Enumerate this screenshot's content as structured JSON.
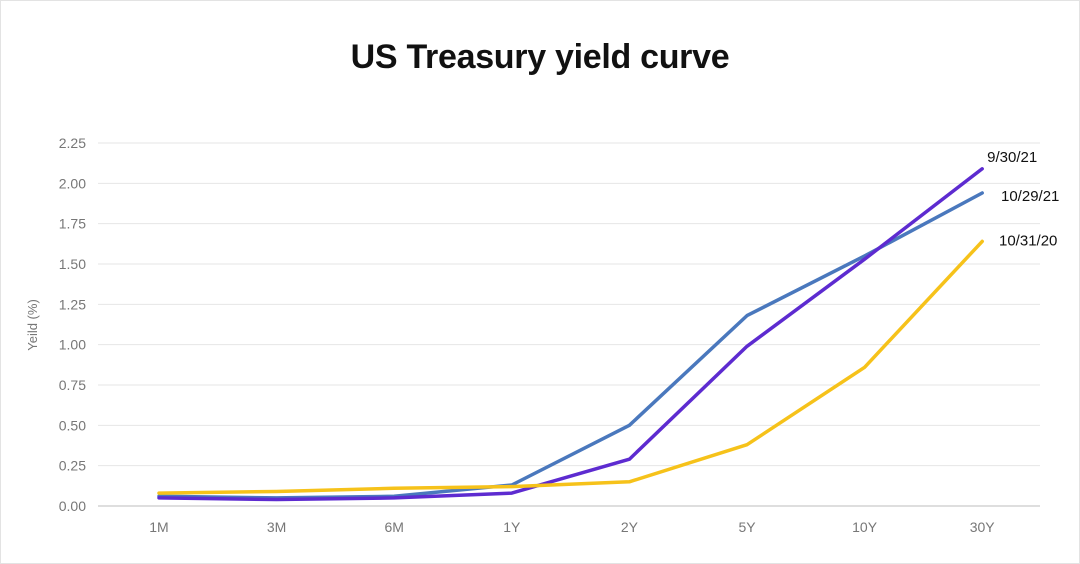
{
  "chart_data": {
    "type": "line",
    "title": "US Treasury yield curve",
    "xlabel": "",
    "ylabel": "Yeild (%)",
    "categories": [
      "1M",
      "3M",
      "6M",
      "1Y",
      "2Y",
      "5Y",
      "10Y",
      "30Y"
    ],
    "ylim": [
      0,
      2.25
    ],
    "yticks": [
      "0.00",
      "0.25",
      "0.50",
      "0.75",
      "1.00",
      "1.25",
      "1.50",
      "1.75",
      "2.00",
      "2.25"
    ],
    "grid": true,
    "legend": "none (series labeled at line ends)",
    "series": [
      {
        "name": "10/29/21",
        "color": "#4a78bd",
        "values": [
          0.06,
          0.05,
          0.06,
          0.13,
          0.5,
          1.18,
          1.55,
          1.94
        ]
      },
      {
        "name": "9/30/21",
        "color": "#5d2bd0",
        "values": [
          0.05,
          0.04,
          0.05,
          0.08,
          0.29,
          0.99,
          1.53,
          2.09
        ]
      },
      {
        "name": "10/31/20",
        "color": "#f6c21a",
        "values": [
          0.08,
          0.09,
          0.11,
          0.12,
          0.15,
          0.38,
          0.86,
          1.64
        ]
      }
    ]
  }
}
